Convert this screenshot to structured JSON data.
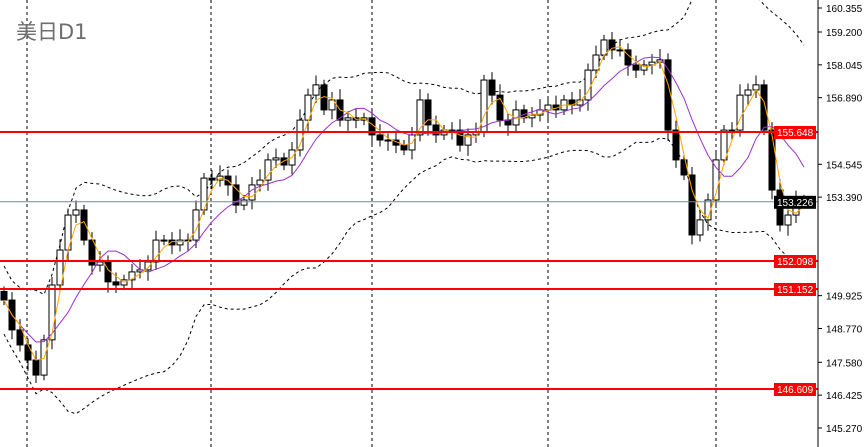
{
  "header": {
    "title": "美日D1"
  },
  "colors": {
    "background": "#ffffff",
    "candle_up": "#ffffff",
    "candle_down": "#000000",
    "fast_ma": "#ffa500",
    "slow_ma": "#9932cc",
    "bands": "#000000",
    "level_line": "#ff0000",
    "current_price_line": "#778899",
    "current_price_label": "#000000"
  },
  "chart_data": {
    "type": "candlestick",
    "symbol_timeframe": "美日D1",
    "closes": [
      149.77,
      148.72,
      148.19,
      147.66,
      147.13,
      148.37,
      150.3,
      151.53,
      152.76,
      152.94,
      151.88,
      151.0,
      151.11,
      150.41,
      150.3,
      150.48,
      150.76,
      150.83,
      151.11,
      151.88,
      151.88,
      151.71,
      151.88,
      151.88,
      152.94,
      154.06,
      153.99,
      154.13,
      153.82,
      153.11,
      153.29,
      153.82,
      153.99,
      154.7,
      154.77,
      154.52,
      155.05,
      156.1,
      156.98,
      157.34,
      156.46,
      156.81,
      156.1,
      156.18,
      156.1,
      156.18,
      155.58,
      155.4,
      155.4,
      155.22,
      155.05,
      155.58,
      156.81,
      155.93,
      155.58,
      155.75,
      155.75,
      155.22,
      155.58,
      155.68,
      157.51,
      156.98,
      156.1,
      155.93,
      156.46,
      156.18,
      156.28,
      156.46,
      156.63,
      156.46,
      156.81,
      156.63,
      156.81,
      157.86,
      158.39,
      158.92,
      158.57,
      158.57,
      158.04,
      157.86,
      158.04,
      158.14,
      158.22,
      155.75,
      154.7,
      154.17,
      152.06,
      152.59,
      153.29,
      154.7,
      155.75,
      155.75,
      156.98,
      157.16,
      157.34,
      155.75,
      153.64,
      152.41,
      152.76,
      153.29,
      153.23
    ],
    "indicators": [
      "fast moving average (orange)",
      "slow moving average (purple)",
      "Bollinger bands (dashed)"
    ],
    "y_axis_ticks": [
      "160.355",
      "159.200",
      "158.045",
      "156.890",
      "154.545",
      "153.390",
      "149.925",
      "148.770",
      "147.580",
      "146.425",
      "145.270"
    ],
    "ylim": [
      144.9,
      160.4
    ],
    "horizontal_levels": [
      "155.648",
      "152.098",
      "151.152",
      "146.609"
    ],
    "current_price": "153.226",
    "grid": "vertical dashed separators"
  }
}
